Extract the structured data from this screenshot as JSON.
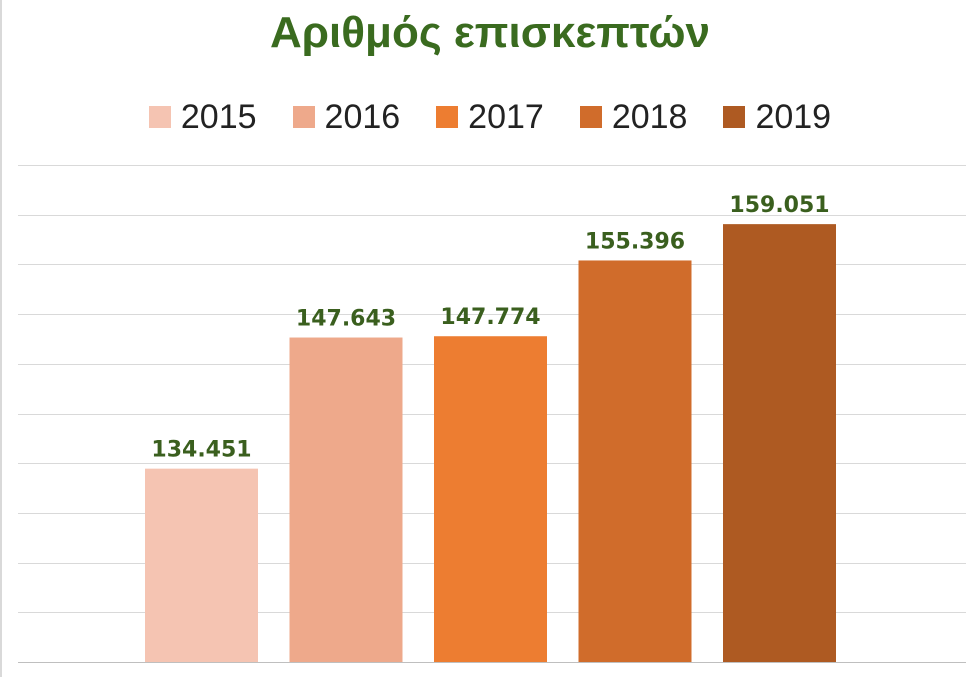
{
  "chart_data": {
    "type": "bar",
    "title": "Αριθμός επισκεπτών",
    "categories": [
      "2015",
      "2016",
      "2017",
      "2018",
      "2019"
    ],
    "values": [
      134451,
      147643,
      147774,
      155396,
      159051
    ],
    "value_labels": [
      "134.451",
      "147.643",
      "147.774",
      "155.396",
      "159.051"
    ],
    "colors": [
      "#f5c4b2",
      "#eea98b",
      "#ed7d31",
      "#d06c2b",
      "#ae5a22"
    ],
    "legend": [
      "2015",
      "2016",
      "2017",
      "2018",
      "2019"
    ],
    "legend_position": "top",
    "ylim": [
      115000,
      165000
    ],
    "y_gridline_step": 5000,
    "grid": true,
    "xlabel": "",
    "ylabel": "",
    "title_color": "#3a6b1f",
    "label_color": "#3a5f1e"
  }
}
